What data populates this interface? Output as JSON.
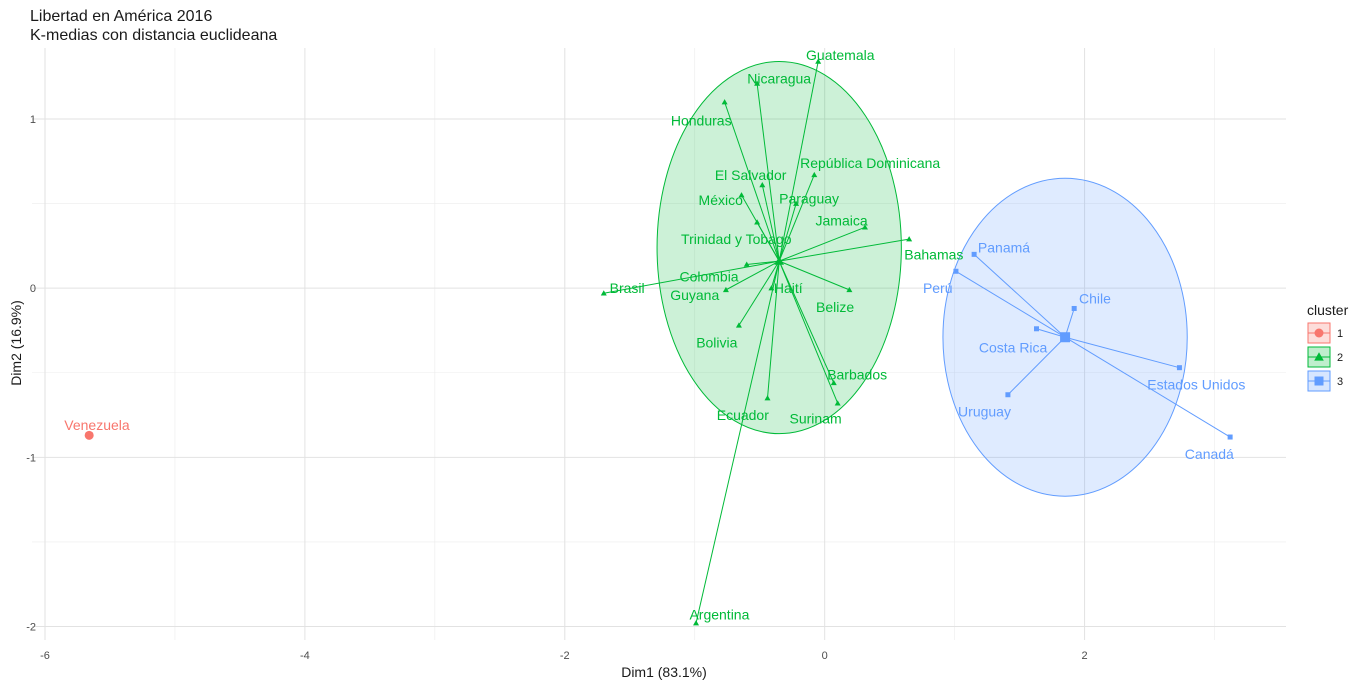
{
  "chart_data": {
    "type": "scatter",
    "title": "Libertad en América 2016",
    "subtitle": "K-medias con distancia euclideana",
    "xlabel": "Dim1 (83.1%)",
    "ylabel": "Dim2 (16.9%)",
    "xlim": [
      -6.1,
      3.55
    ],
    "ylim": [
      -2.08,
      1.42
    ],
    "x_ticks": [
      -6,
      -4,
      -2,
      0,
      2
    ],
    "y_ticks": [
      -2,
      -1,
      0,
      1
    ],
    "x_tick_labels": [
      "-6",
      "-4",
      "-2",
      "0",
      "2"
    ],
    "y_tick_labels": [
      "-2",
      "-1",
      "0",
      "1"
    ],
    "grid": true,
    "legend": {
      "title": "cluster",
      "position": "right"
    },
    "clusters": [
      {
        "name": "1",
        "color": "#F8766D",
        "marker": "circle",
        "centroid": [
          -5.66,
          -0.87
        ],
        "ellipse": null,
        "points": [
          {
            "label": "Venezuela",
            "x": -5.66,
            "y": -0.87,
            "lx": -5.6,
            "ly": -0.81
          }
        ]
      },
      {
        "name": "2",
        "color": "#00BA38",
        "marker": "triangle",
        "centroid": [
          -0.35,
          0.16
        ],
        "ellipse": {
          "cx": -0.35,
          "cy": 0.24,
          "rx": 0.94,
          "ry": 1.1
        },
        "points": [
          {
            "label": "Guatemala",
            "x": -0.05,
            "y": 1.34,
            "lx": 0.12,
            "ly": 1.38
          },
          {
            "label": "Nicaragua",
            "x": -0.52,
            "y": 1.21,
            "lx": -0.35,
            "ly": 1.24
          },
          {
            "label": "Honduras",
            "x": -0.77,
            "y": 1.1,
            "lx": -0.95,
            "ly": 0.99
          },
          {
            "label": "República Dominicana",
            "x": -0.08,
            "y": 0.67,
            "lx": 0.35,
            "ly": 0.74
          },
          {
            "label": "El Salvador",
            "x": -0.48,
            "y": 0.61,
            "lx": -0.57,
            "ly": 0.67
          },
          {
            "label": "Paraguay",
            "x": -0.22,
            "y": 0.5,
            "lx": -0.12,
            "ly": 0.53
          },
          {
            "label": "México",
            "x": -0.64,
            "y": 0.55,
            "lx": -0.8,
            "ly": 0.52
          },
          {
            "label": "Jamaica",
            "x": 0.31,
            "y": 0.36,
            "lx": 0.13,
            "ly": 0.4
          },
          {
            "label": "Trinidad y Tobago",
            "x": -0.52,
            "y": 0.39,
            "lx": -0.68,
            "ly": 0.29
          },
          {
            "label": "Bahamas",
            "x": 0.65,
            "y": 0.29,
            "lx": 0.84,
            "ly": 0.2
          },
          {
            "label": "Colombia",
            "x": -0.6,
            "y": 0.14,
            "lx": -0.89,
            "ly": 0.07
          },
          {
            "label": "Haití",
            "x": -0.41,
            "y": 0.0,
            "lx": -0.28,
            "ly": 0.0
          },
          {
            "label": "Brasil",
            "x": -1.7,
            "y": -0.03,
            "lx": -1.52,
            "ly": 0.0
          },
          {
            "label": "Guyana",
            "x": -0.76,
            "y": -0.01,
            "lx": -1.0,
            "ly": -0.04
          },
          {
            "label": "Belize",
            "x": 0.19,
            "y": -0.01,
            "lx": 0.08,
            "ly": -0.11
          },
          {
            "label": "Bolivia",
            "x": -0.66,
            "y": -0.22,
            "lx": -0.83,
            "ly": -0.32
          },
          {
            "label": "Barbados",
            "x": 0.07,
            "y": -0.56,
            "lx": 0.25,
            "ly": -0.51
          },
          {
            "label": "Ecuador",
            "x": -0.44,
            "y": -0.65,
            "lx": -0.63,
            "ly": -0.75
          },
          {
            "label": "Surinam",
            "x": 0.1,
            "y": -0.68,
            "lx": -0.07,
            "ly": -0.77
          },
          {
            "label": "Argentina",
            "x": -0.99,
            "y": -1.98,
            "lx": -0.81,
            "ly": -1.93
          }
        ]
      },
      {
        "name": "3",
        "color": "#619CFF",
        "marker": "square",
        "centroid": [
          1.85,
          -0.29
        ],
        "ellipse": {
          "cx": 1.85,
          "cy": -0.29,
          "rx": 0.94,
          "ry": 0.94
        },
        "points": [
          {
            "label": "Panamá",
            "x": 1.15,
            "y": 0.2,
            "lx": 1.38,
            "ly": 0.24
          },
          {
            "label": "Perú",
            "x": 1.01,
            "y": 0.1,
            "lx": 0.87,
            "ly": 0.0
          },
          {
            "label": "Chile",
            "x": 1.92,
            "y": -0.12,
            "lx": 2.08,
            "ly": -0.06
          },
          {
            "label": "Costa Rica",
            "x": 1.63,
            "y": -0.24,
            "lx": 1.45,
            "ly": -0.35
          },
          {
            "label": "Estados Unidos",
            "x": 2.73,
            "y": -0.47,
            "lx": 2.86,
            "ly": -0.57
          },
          {
            "label": "Uruguay",
            "x": 1.41,
            "y": -0.63,
            "lx": 1.23,
            "ly": -0.73
          },
          {
            "label": "Canadá",
            "x": 3.12,
            "y": -0.88,
            "lx": 2.96,
            "ly": -0.98
          }
        ]
      }
    ]
  }
}
